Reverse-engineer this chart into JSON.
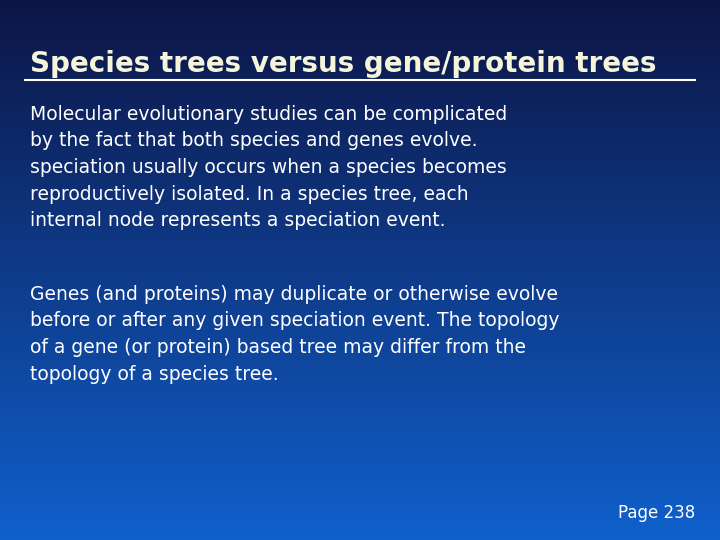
{
  "title": "Species trees versus gene/protein trees",
  "title_color": "#F5F5DC",
  "title_fontsize": 20,
  "bg_color_top": "#0d1545",
  "bg_color_mid": "#0d3aaa",
  "bg_color_bottom": "#1050cc",
  "line_color": "#FFFFFF",
  "body_text_color": "#FFFFFF",
  "body_fontsize": 13.5,
  "paragraph1": "Molecular evolutionary studies can be complicated\nby the fact that both species and genes evolve.\nspeciation usually occurs when a species becomes\nreproductively isolated. In a species tree, each\ninternal node represents a speciation event.",
  "paragraph2": "Genes (and proteins) may duplicate or otherwise evolve\nbefore or after any given speciation event. The topology\nof a gene (or protein) based tree may differ from the\ntopology of a species tree.",
  "page_label": "Page 238",
  "page_fontsize": 12
}
